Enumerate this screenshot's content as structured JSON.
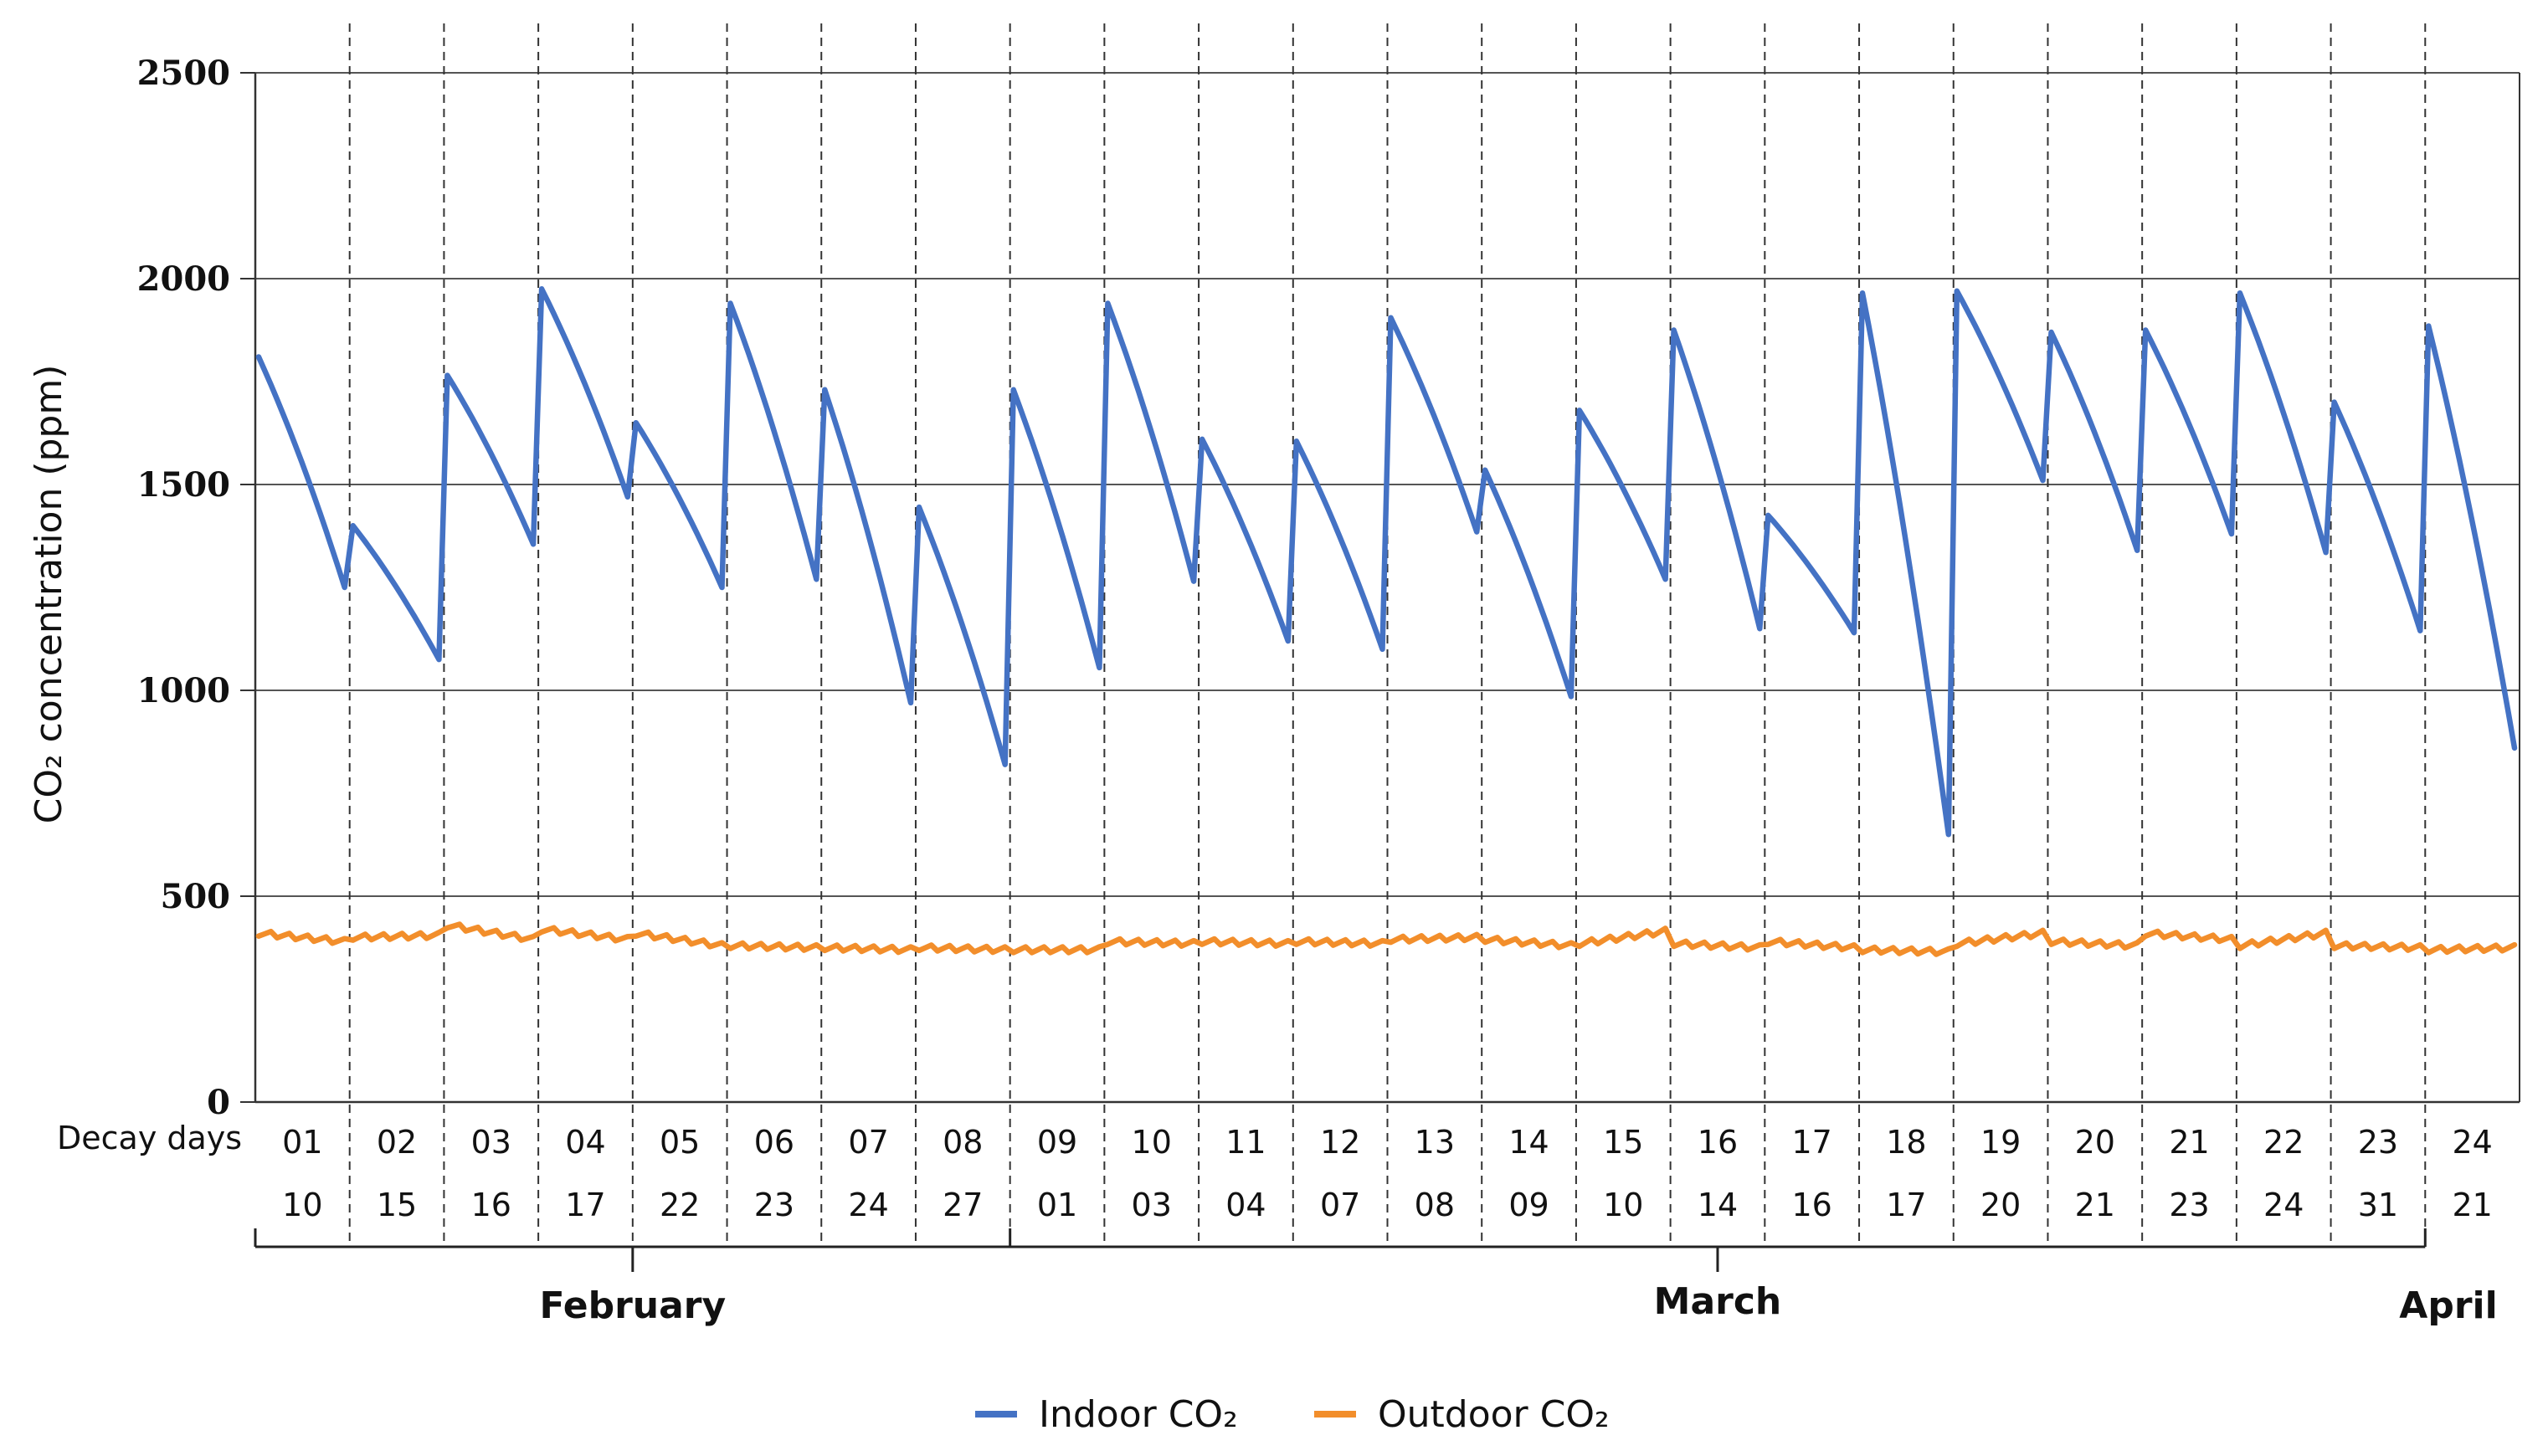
{
  "chart_data": {
    "type": "line",
    "ylabel": "CO₂ concentration (ppm)",
    "ylim": [
      0,
      2500
    ],
    "yticks": [
      0,
      500,
      1000,
      1500,
      2000,
      2500
    ],
    "grid": true,
    "legend_position": "bottom-center",
    "row_label": "Decay days",
    "decay_days": [
      "01",
      "02",
      "03",
      "04",
      "05",
      "06",
      "07",
      "08",
      "09",
      "10",
      "11",
      "12",
      "13",
      "14",
      "15",
      "16",
      "17",
      "18",
      "19",
      "20",
      "21",
      "22",
      "23",
      "24"
    ],
    "dates": [
      "10",
      "15",
      "16",
      "17",
      "22",
      "23",
      "24",
      "27",
      "01",
      "03",
      "04",
      "07",
      "08",
      "09",
      "10",
      "14",
      "16",
      "17",
      "20",
      "21",
      "23",
      "24",
      "31",
      "21"
    ],
    "months": [
      {
        "name": "February",
        "first_day_index": 0,
        "last_day_index": 7
      },
      {
        "name": "March",
        "first_day_index": 8,
        "last_day_index": 22
      },
      {
        "name": "April",
        "first_day_index": 23,
        "last_day_index": 23
      }
    ],
    "series": [
      {
        "name": "Indoor CO₂",
        "color": "#4472C4",
        "segments": [
          {
            "peak": 1810,
            "end": 1250
          },
          {
            "peak": 1400,
            "end": 1075
          },
          {
            "peak": 1765,
            "end": 1355
          },
          {
            "peak": 1975,
            "end": 1470
          },
          {
            "peak": 1650,
            "end": 1250
          },
          {
            "peak": 1940,
            "end": 1270
          },
          {
            "peak": 1730,
            "end": 970
          },
          {
            "peak": 1445,
            "end": 820
          },
          {
            "peak": 1730,
            "end": 1055
          },
          {
            "peak": 1940,
            "end": 1265
          },
          {
            "peak": 1610,
            "end": 1120
          },
          {
            "peak": 1605,
            "end": 1100
          },
          {
            "peak": 1905,
            "end": 1385
          },
          {
            "peak": 1535,
            "end": 985
          },
          {
            "peak": 1680,
            "end": 1270
          },
          {
            "peak": 1875,
            "end": 1150
          },
          {
            "peak": 1425,
            "end": 1140
          },
          {
            "peak": 1965,
            "end": 650
          },
          {
            "peak": 1970,
            "end": 1510
          },
          {
            "peak": 1870,
            "end": 1340
          },
          {
            "peak": 1875,
            "end": 1380
          },
          {
            "peak": 1965,
            "end": 1335
          },
          {
            "peak": 1700,
            "end": 1145
          },
          {
            "peak": 1885,
            "end": 860
          }
        ]
      },
      {
        "name": "Outdoor CO₂",
        "color": "#F28E2B",
        "segments": [
          {
            "peak": 410,
            "end": 390
          },
          {
            "peak": 400,
            "end": 405
          },
          {
            "peak": 430,
            "end": 395
          },
          {
            "peak": 420,
            "end": 395
          },
          {
            "peak": 410,
            "end": 380
          },
          {
            "peak": 380,
            "end": 375
          },
          {
            "peak": 375,
            "end": 370
          },
          {
            "peak": 375,
            "end": 370
          },
          {
            "peak": 370,
            "end": 370
          },
          {
            "peak": 390,
            "end": 385
          },
          {
            "peak": 390,
            "end": 385
          },
          {
            "peak": 390,
            "end": 385
          },
          {
            "peak": 395,
            "end": 400
          },
          {
            "peak": 395,
            "end": 380
          },
          {
            "peak": 385,
            "end": 415
          },
          {
            "peak": 385,
            "end": 375
          },
          {
            "peak": 390,
            "end": 375
          },
          {
            "peak": 370,
            "end": 365
          },
          {
            "peak": 385,
            "end": 410
          },
          {
            "peak": 390,
            "end": 380
          },
          {
            "peak": 410,
            "end": 395
          },
          {
            "peak": 380,
            "end": 410
          },
          {
            "peak": 380,
            "end": 375
          },
          {
            "peak": 370,
            "end": 375
          }
        ]
      }
    ]
  }
}
